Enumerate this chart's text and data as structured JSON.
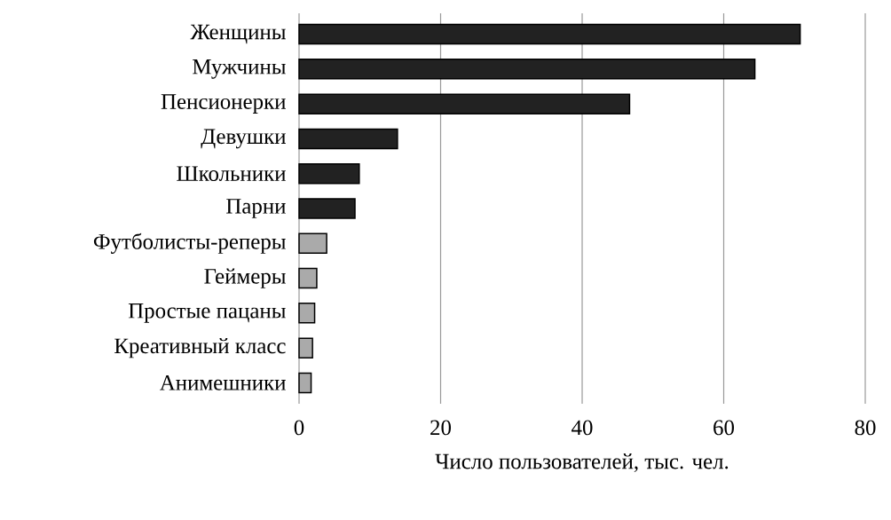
{
  "chart_data": {
    "type": "bar",
    "orientation": "horizontal",
    "xlabel": "Число пользователей, тыс. чел.",
    "categories": [
      "Женщины",
      "Мужчины",
      "Пенсионерки",
      "Девушки",
      "Школьники",
      "Парни",
      "Футболисты-реперы",
      "Геймеры",
      "Простые пацаны",
      "Креативный класс",
      "Анимешники"
    ],
    "values": [
      70.8,
      64.4,
      46.7,
      13.9,
      8.5,
      7.9,
      3.9,
      2.5,
      2.2,
      1.9,
      1.7
    ],
    "colors": [
      "#222222",
      "#222222",
      "#222222",
      "#222222",
      "#222222",
      "#222222",
      "#aaaaaa",
      "#aaaaaa",
      "#aaaaaa",
      "#aaaaaa",
      "#aaaaaa"
    ],
    "xlim": [
      0,
      80
    ],
    "xticks": [
      0,
      20,
      40,
      60,
      80
    ],
    "grid": "x"
  }
}
